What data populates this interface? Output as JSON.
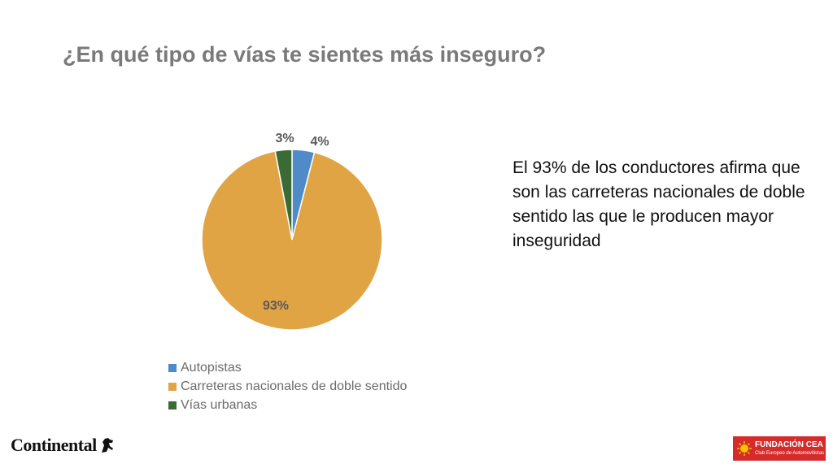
{
  "title": "¿En qué tipo de vías te sientes más inseguro?",
  "callout": "El 93% de los conductores afirma que son las carreteras nacionales de doble sentido las que le producen mayor inseguridad",
  "chart_data": {
    "type": "pie",
    "title": "",
    "categories": [
      "Autopistas",
      "Carreteras nacionales de doble sentido",
      "Vías urbanas"
    ],
    "values": [
      4,
      93,
      3
    ],
    "labels": [
      "4%",
      "93%",
      "3%"
    ],
    "colors": [
      "#4f8bc9",
      "#e0a444",
      "#3a6b35"
    ],
    "legend_position": "bottom"
  },
  "logos": {
    "continental": "Continental",
    "fundacion_cea": "FUNDACIÓN CEA",
    "fundacion_cea_sub": "Club Europeo de Automovilistas"
  },
  "icons": [
    "horse-icon",
    "sun-icon"
  ]
}
